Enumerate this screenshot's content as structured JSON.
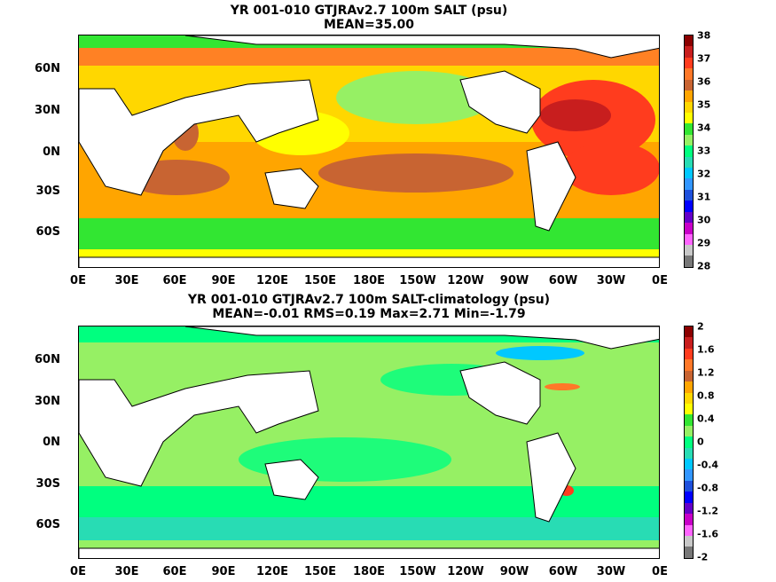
{
  "panel1": {
    "title": "YR 001-010 GTJRAv2.7 100m SALT (psu)",
    "subtitle": "MEAN=35.00",
    "colorbar": {
      "labels": [
        "38",
        "37",
        "36",
        "35",
        "34",
        "33",
        "32",
        "31",
        "30",
        "29",
        "28"
      ],
      "colors": [
        "#8b0000",
        "#c81e1e",
        "#ff3c1e",
        "#ff7828",
        "#c86432",
        "#ffa500",
        "#ffd700",
        "#ffff00",
        "#32e632",
        "#96f064",
        "#00ff7f",
        "#28dcb4",
        "#00c8ff",
        "#3296ff",
        "#1e50dc",
        "#0000ff",
        "#6400c8",
        "#c800c8",
        "#ff64ff",
        "#c8c8c8",
        "#787878"
      ]
    }
  },
  "panel2": {
    "title": "YR 001-010 GTJRAv2.7 100m SALT-climatology (psu)",
    "subtitle": "MEAN=-0.01   RMS=0.19   Max=2.71   Min=-1.79",
    "colorbar": {
      "labels": [
        "2",
        "1.6",
        "1.2",
        "0.8",
        "0.4",
        "0",
        "-0.4",
        "-0.8",
        "-1.2",
        "-1.6",
        "-2"
      ],
      "colors": [
        "#8b0000",
        "#c81e1e",
        "#ff3c1e",
        "#ff7828",
        "#c86432",
        "#ffa500",
        "#ffd700",
        "#ffff00",
        "#32e632",
        "#96f064",
        "#00ff7f",
        "#28dcb4",
        "#00c8ff",
        "#3296ff",
        "#1e50dc",
        "#0000ff",
        "#6400c8",
        "#c800c8",
        "#ff64ff",
        "#c8c8c8",
        "#787878"
      ]
    }
  },
  "lat_labels": [
    "60N",
    "30N",
    "0N",
    "30S",
    "60S"
  ],
  "lon_labels": [
    "0E",
    "30E",
    "60E",
    "90E",
    "120E",
    "150E",
    "180E",
    "150W",
    "120W",
    "90W",
    "60W",
    "30W",
    "0E"
  ]
}
